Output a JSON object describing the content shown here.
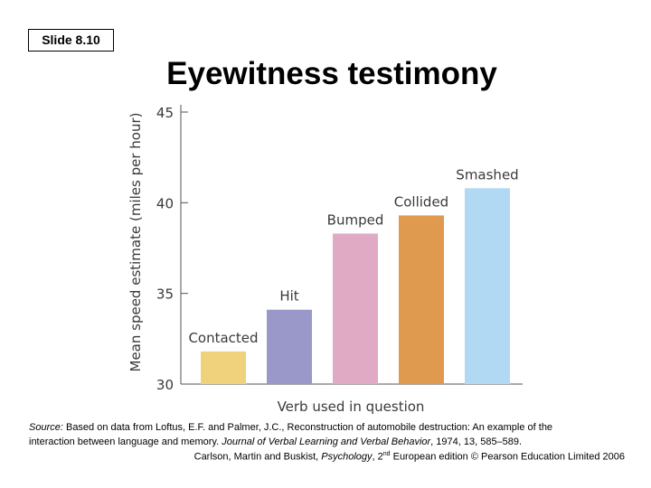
{
  "slide": {
    "label": "Slide 8.10",
    "title": "Eyewitness testimony"
  },
  "chart_data": {
    "type": "bar",
    "title": "",
    "xlabel": "Verb used in question",
    "ylabel": "Mean speed estimate (miles per hour)",
    "categories": [
      "Contacted",
      "Hit",
      "Bumped",
      "Collided",
      "Smashed"
    ],
    "values": [
      31.8,
      34.1,
      38.3,
      39.3,
      40.8
    ],
    "colors": [
      "#f0d27d",
      "#9a98c8",
      "#e0a9c4",
      "#e09a4f",
      "#b2d9f4"
    ],
    "ylim": [
      30,
      45
    ],
    "yticks": [
      30,
      35,
      40,
      45
    ],
    "grid": false,
    "legend": "none"
  },
  "source": {
    "label": "Source:",
    "text_line1": " Based on data from Loftus, E.F. and Palmer, J.C., Reconstruction of automobile destruction: An example of the",
    "text_line2a": "interaction between language and memory. ",
    "journal": "Journal of Verbal Learning and Verbal Behavior",
    "text_line2b": ", 1974, 13, 585–589."
  },
  "credit": {
    "authors": "Carlson, Martin and Buskist, ",
    "book": "Psychology",
    "edition_pre": ", 2",
    "edition_sup": "nd",
    "edition_post": " European edition © Pearson Education Limited 2006"
  }
}
